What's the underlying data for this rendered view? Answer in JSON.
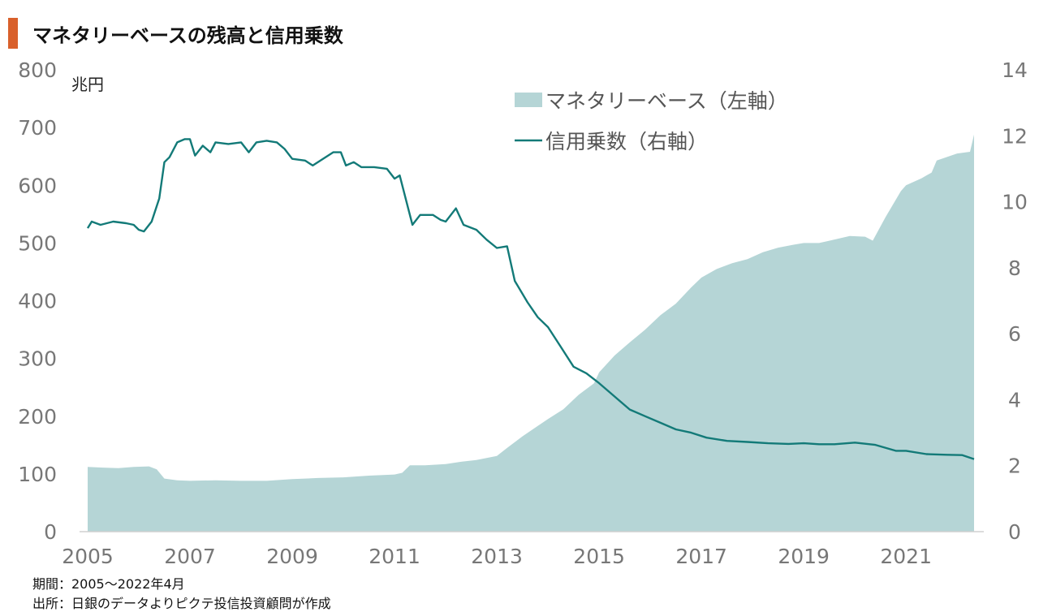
{
  "title": "マネタリーベースの残高と信用乗数",
  "unit_label": "兆円",
  "footnotes": {
    "period": "期間：2005～2022年4月",
    "source": "出所：日銀のデータよりピクテ投信投資顧問が作成"
  },
  "colors": {
    "title_accent": "#d9602b",
    "area_fill": "#b5d5d6",
    "line": "#137a78",
    "tick_text": "#777777"
  },
  "chart_data": {
    "type": "area+line",
    "x_range": [
      2005.0,
      2022.33
    ],
    "x_ticks": [
      "2005",
      "2007",
      "2009",
      "2011",
      "2013",
      "2015",
      "2017",
      "2019",
      "2021"
    ],
    "y_left": {
      "range": [
        0,
        800
      ],
      "ticks": [
        "0",
        "100",
        "200",
        "300",
        "400",
        "500",
        "600",
        "700",
        "800"
      ],
      "unit": "兆円"
    },
    "y_right": {
      "range": [
        0,
        14
      ],
      "ticks": [
        "0",
        "2",
        "4",
        "6",
        "8",
        "10",
        "12",
        "14"
      ]
    },
    "legend": {
      "placement": "top-right"
    },
    "series": [
      {
        "name": "マネタリーベース（左軸）",
        "type": "area",
        "axis": "left",
        "points": [
          [
            2005.0,
            112
          ],
          [
            2005.3,
            111
          ],
          [
            2005.6,
            110
          ],
          [
            2005.9,
            112
          ],
          [
            2006.2,
            113
          ],
          [
            2006.35,
            108
          ],
          [
            2006.5,
            92
          ],
          [
            2006.75,
            89
          ],
          [
            2007.0,
            88
          ],
          [
            2007.5,
            89
          ],
          [
            2008.0,
            88
          ],
          [
            2008.5,
            88
          ],
          [
            2009.0,
            91
          ],
          [
            2009.5,
            93
          ],
          [
            2010.0,
            94
          ],
          [
            2010.5,
            97
          ],
          [
            2011.0,
            99
          ],
          [
            2011.15,
            102
          ],
          [
            2011.3,
            115
          ],
          [
            2011.6,
            115
          ],
          [
            2012.0,
            117
          ],
          [
            2012.3,
            121
          ],
          [
            2012.6,
            124
          ],
          [
            2013.0,
            131
          ],
          [
            2013.2,
            145
          ],
          [
            2013.5,
            165
          ],
          [
            2013.8,
            183
          ],
          [
            2014.0,
            195
          ],
          [
            2014.3,
            212
          ],
          [
            2014.6,
            237
          ],
          [
            2014.9,
            257
          ],
          [
            2015.0,
            276
          ],
          [
            2015.3,
            305
          ],
          [
            2015.6,
            328
          ],
          [
            2015.9,
            350
          ],
          [
            2016.2,
            375
          ],
          [
            2016.5,
            395
          ],
          [
            2016.8,
            423
          ],
          [
            2017.0,
            440
          ],
          [
            2017.3,
            455
          ],
          [
            2017.6,
            465
          ],
          [
            2017.9,
            472
          ],
          [
            2018.2,
            484
          ],
          [
            2018.5,
            492
          ],
          [
            2018.8,
            497
          ],
          [
            2019.0,
            500
          ],
          [
            2019.3,
            500
          ],
          [
            2019.6,
            506
          ],
          [
            2019.9,
            512
          ],
          [
            2020.2,
            511
          ],
          [
            2020.35,
            504
          ],
          [
            2020.6,
            545
          ],
          [
            2020.9,
            590
          ],
          [
            2021.0,
            600
          ],
          [
            2021.3,
            612
          ],
          [
            2021.5,
            622
          ],
          [
            2021.6,
            643
          ],
          [
            2021.9,
            652
          ],
          [
            2022.0,
            655
          ],
          [
            2022.25,
            658
          ],
          [
            2022.33,
            688
          ]
        ]
      },
      {
        "name": "信用乗数（右軸）",
        "type": "line",
        "axis": "right",
        "points": [
          [
            2005.0,
            9.2
          ],
          [
            2005.08,
            9.4
          ],
          [
            2005.25,
            9.3
          ],
          [
            2005.5,
            9.4
          ],
          [
            2005.75,
            9.35
          ],
          [
            2005.9,
            9.3
          ],
          [
            2006.0,
            9.15
          ],
          [
            2006.1,
            9.1
          ],
          [
            2006.25,
            9.4
          ],
          [
            2006.4,
            10.1
          ],
          [
            2006.5,
            11.2
          ],
          [
            2006.6,
            11.35
          ],
          [
            2006.75,
            11.8
          ],
          [
            2006.9,
            11.9
          ],
          [
            2007.0,
            11.9
          ],
          [
            2007.1,
            11.4
          ],
          [
            2007.25,
            11.7
          ],
          [
            2007.4,
            11.5
          ],
          [
            2007.5,
            11.8
          ],
          [
            2007.75,
            11.75
          ],
          [
            2008.0,
            11.8
          ],
          [
            2008.15,
            11.5
          ],
          [
            2008.3,
            11.8
          ],
          [
            2008.5,
            11.85
          ],
          [
            2008.7,
            11.8
          ],
          [
            2008.85,
            11.6
          ],
          [
            2009.0,
            11.3
          ],
          [
            2009.25,
            11.25
          ],
          [
            2009.4,
            11.1
          ],
          [
            2009.6,
            11.3
          ],
          [
            2009.8,
            11.5
          ],
          [
            2009.95,
            11.5
          ],
          [
            2010.05,
            11.1
          ],
          [
            2010.2,
            11.2
          ],
          [
            2010.35,
            11.05
          ],
          [
            2010.6,
            11.05
          ],
          [
            2010.85,
            11.0
          ],
          [
            2011.0,
            10.7
          ],
          [
            2011.1,
            10.8
          ],
          [
            2011.25,
            9.9
          ],
          [
            2011.35,
            9.3
          ],
          [
            2011.5,
            9.6
          ],
          [
            2011.75,
            9.6
          ],
          [
            2011.9,
            9.45
          ],
          [
            2012.0,
            9.4
          ],
          [
            2012.2,
            9.8
          ],
          [
            2012.35,
            9.3
          ],
          [
            2012.6,
            9.15
          ],
          [
            2012.8,
            8.85
          ],
          [
            2013.0,
            8.6
          ],
          [
            2013.2,
            8.65
          ],
          [
            2013.35,
            7.6
          ],
          [
            2013.6,
            6.95
          ],
          [
            2013.8,
            6.5
          ],
          [
            2014.0,
            6.2
          ],
          [
            2014.25,
            5.6
          ],
          [
            2014.5,
            5.0
          ],
          [
            2014.75,
            4.8
          ],
          [
            2015.0,
            4.5
          ],
          [
            2015.3,
            4.1
          ],
          [
            2015.6,
            3.7
          ],
          [
            2015.9,
            3.5
          ],
          [
            2016.2,
            3.3
          ],
          [
            2016.5,
            3.1
          ],
          [
            2016.8,
            3.0
          ],
          [
            2017.1,
            2.85
          ],
          [
            2017.5,
            2.75
          ],
          [
            2017.9,
            2.72
          ],
          [
            2018.3,
            2.68
          ],
          [
            2018.7,
            2.66
          ],
          [
            2019.0,
            2.68
          ],
          [
            2019.3,
            2.65
          ],
          [
            2019.6,
            2.65
          ],
          [
            2020.0,
            2.7
          ],
          [
            2020.4,
            2.63
          ],
          [
            2020.8,
            2.45
          ],
          [
            2021.0,
            2.45
          ],
          [
            2021.4,
            2.35
          ],
          [
            2021.8,
            2.33
          ],
          [
            2022.1,
            2.32
          ],
          [
            2022.33,
            2.2
          ]
        ]
      }
    ]
  }
}
